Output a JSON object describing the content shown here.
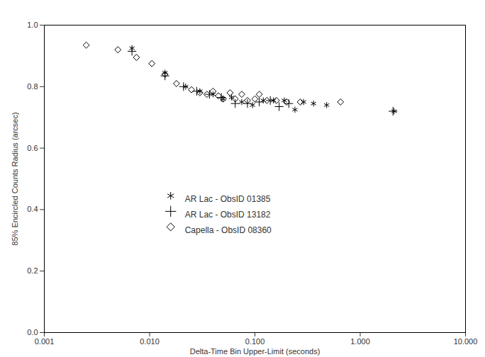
{
  "chart_data": {
    "type": "scatter",
    "x_label": "Delta-Time Bin Upper-Limit (seconds)",
    "y_label": "85% Encircled Counts Radius (arcsec)",
    "log": "x",
    "xlim": [
      0.001,
      10
    ],
    "xticks": [
      0.001,
      {
        "value": 0.01,
        "label": "0.010"
      },
      {
        "value": 0.1,
        "label": "0.100"
      },
      {
        "value": 1,
        "label": "1.000"
      },
      {
        "value": 10,
        "label": "10.000"
      }
    ],
    "ylim": [
      0,
      1
    ],
    "yticks": [
      {
        "value": 0,
        "label": "0.0"
      },
      0.2,
      0.4,
      0.6,
      0.8,
      {
        "value": 1,
        "label": "1.0"
      }
    ],
    "grid": false,
    "legend": "center",
    "series": [
      {
        "name": "AR Lac - ObsID 01385",
        "color": "#000000",
        "marker": "asterisk",
        "x": [
          0.0068,
          0.014,
          0.022,
          0.03,
          0.04,
          0.05,
          0.06,
          0.075,
          0.095,
          0.12,
          0.15,
          0.19,
          0.24,
          0.29,
          0.36,
          0.48,
          2.1
        ],
        "values": [
          0.925,
          0.845,
          0.8,
          0.785,
          0.775,
          0.76,
          0.765,
          0.75,
          0.74,
          0.755,
          0.755,
          0.755,
          0.725,
          0.75,
          0.745,
          0.74,
          0.72
        ]
      },
      {
        "name": "AR Lac - ObsID 13182",
        "color": "#000000",
        "marker": "plus",
        "x": [
          0.0068,
          0.014,
          0.021,
          0.028,
          0.037,
          0.048,
          0.065,
          0.085,
          0.11,
          0.14,
          0.17,
          0.21,
          2.05
        ],
        "values": [
          0.915,
          0.835,
          0.8,
          0.785,
          0.775,
          0.765,
          0.745,
          0.745,
          0.75,
          0.755,
          0.735,
          0.745,
          0.72
        ]
      },
      {
        "name": "Capella - ObsID 08360",
        "color": "#000000",
        "marker": "diamond",
        "x": [
          0.0025,
          0.005,
          0.0075,
          0.0105,
          0.014,
          0.018,
          0.025,
          0.03,
          0.035,
          0.04,
          0.045,
          0.05,
          0.058,
          0.065,
          0.075,
          0.085,
          0.1,
          0.11,
          0.13,
          0.16,
          0.2,
          0.27,
          0.65
        ],
        "values": [
          0.935,
          0.92,
          0.895,
          0.875,
          0.84,
          0.81,
          0.79,
          0.78,
          0.775,
          0.785,
          0.77,
          0.76,
          0.78,
          0.76,
          0.775,
          0.755,
          0.76,
          0.775,
          0.755,
          0.755,
          0.75,
          0.75,
          0.75
        ]
      }
    ]
  }
}
